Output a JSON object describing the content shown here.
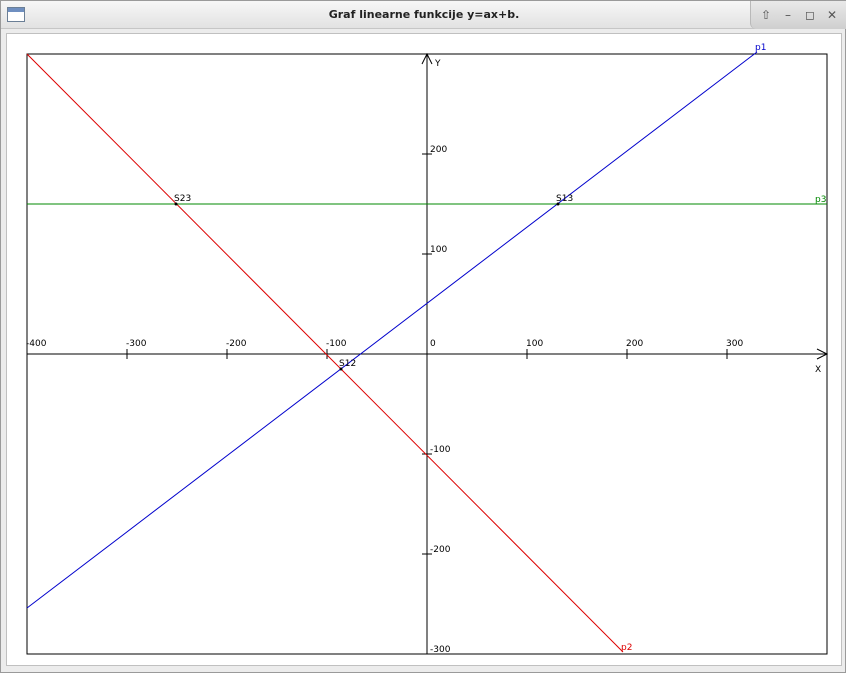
{
  "window": {
    "title": "Graf linearne funkcije y=ax+b.",
    "controls": [
      "restore-up",
      "minimize",
      "maximize",
      "close"
    ]
  },
  "chart_data": {
    "type": "line",
    "xlabel": "X",
    "ylabel": "Y",
    "xlim": [
      -400,
      400
    ],
    "ylim": [
      -300,
      300
    ],
    "x_ticks": [
      -400,
      -300,
      -200,
      -100,
      0,
      100,
      200,
      300
    ],
    "x_tick_labels": [
      "-400",
      "-300",
      "-200",
      "-100",
      "0",
      "100",
      "200",
      "300"
    ],
    "y_ticks": [
      200,
      100,
      -100,
      -200,
      -300
    ],
    "y_tick_labels": [
      "200",
      "100",
      "-100",
      "-200",
      "-300"
    ],
    "series": [
      {
        "name": "p1",
        "color": "#0000cc",
        "x": [
          -400,
          330
        ],
        "y": [
          -254,
          302
        ]
      },
      {
        "name": "p2",
        "color": "#dd0000",
        "x": [
          -400,
          196
        ],
        "y": [
          300,
          -298
        ]
      },
      {
        "name": "p3",
        "color": "#008800",
        "x": [
          -400,
          400
        ],
        "y": [
          150,
          150
        ]
      }
    ],
    "points": [
      {
        "label": "S12",
        "x": -86,
        "y": -15
      },
      {
        "label": "S13",
        "x": 131,
        "y": 150
      },
      {
        "label": "S23",
        "x": -251,
        "y": 150
      }
    ]
  }
}
